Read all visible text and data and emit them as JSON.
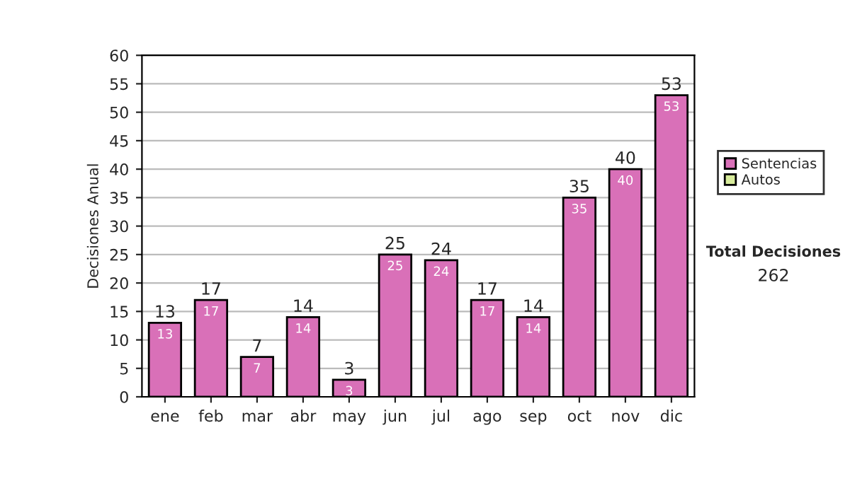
{
  "chart_data": {
    "type": "bar",
    "stacked": true,
    "ylabel": "Decisiones Anual",
    "categories": [
      "ene",
      "feb",
      "mar",
      "abr",
      "may",
      "jun",
      "jul",
      "ago",
      "sep",
      "oct",
      "nov",
      "dic"
    ],
    "series": [
      {
        "name": "Sentencias",
        "color": "#d970b8",
        "values": [
          13,
          17,
          7,
          14,
          3,
          25,
          24,
          17,
          14,
          35,
          40,
          53
        ],
        "value_labels": [
          "13",
          "17",
          "7",
          "14",
          "3",
          "25",
          "24",
          "17",
          "14",
          "35",
          "40",
          "53"
        ]
      },
      {
        "name": "Autos",
        "color": "#d8ec9c",
        "values": [
          null,
          null,
          null,
          null,
          null,
          null,
          null,
          null,
          null,
          null,
          null,
          null
        ]
      }
    ],
    "totals": [
      "13",
      "17",
      "7",
      "14",
      "3",
      "25",
      "24",
      "17",
      "14",
      "35",
      "40",
      "53"
    ],
    "ylim": [
      0,
      60
    ],
    "yticks": [
      0,
      5,
      10,
      15,
      20,
      25,
      30,
      35,
      40,
      45,
      50,
      55,
      60
    ],
    "grid": "y",
    "legend": "right",
    "annotations": [
      "Total Decisiones",
      "262"
    ]
  }
}
